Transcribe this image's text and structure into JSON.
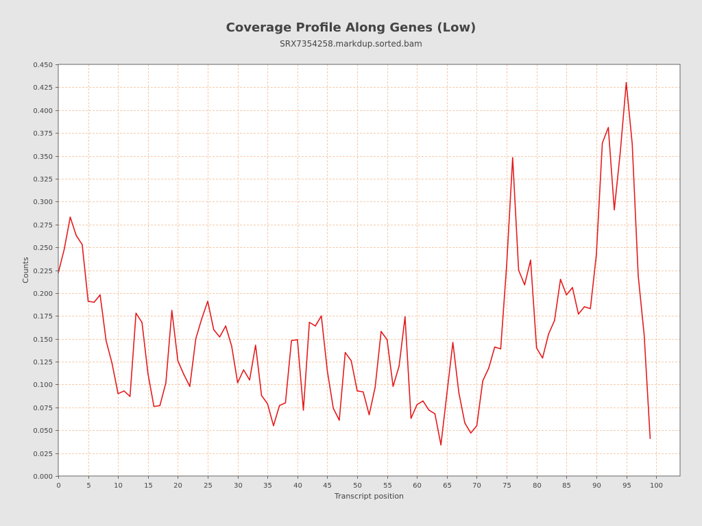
{
  "chart_data": {
    "type": "line",
    "title": "Coverage Profile Along Genes (Low)",
    "subtitle": "SRX7354258.markdup.sorted.bam",
    "xlabel": "Transcript position",
    "ylabel": "Counts",
    "xlim": [
      0,
      104
    ],
    "ylim": [
      0,
      0.45
    ],
    "x_ticks": [
      "0",
      "5",
      "10",
      "15",
      "20",
      "25",
      "30",
      "35",
      "40",
      "45",
      "50",
      "55",
      "60",
      "65",
      "70",
      "75",
      "80",
      "85",
      "90",
      "95",
      "100"
    ],
    "y_ticks": [
      "0.000",
      "0.025",
      "0.050",
      "0.075",
      "0.100",
      "0.125",
      "0.150",
      "0.175",
      "0.200",
      "0.225",
      "0.250",
      "0.275",
      "0.300",
      "0.325",
      "0.350",
      "0.375",
      "0.400",
      "0.425",
      "0.450"
    ],
    "grid": true,
    "series": [
      {
        "color": "#e31a1c",
        "x": [
          0,
          1,
          2,
          3,
          4,
          5,
          6,
          7,
          8,
          9,
          10,
          11,
          12,
          13,
          14,
          15,
          16,
          17,
          18,
          19,
          20,
          21,
          22,
          23,
          24,
          25,
          26,
          27,
          28,
          29,
          30,
          31,
          32,
          33,
          34,
          35,
          36,
          37,
          38,
          39,
          40,
          41,
          42,
          43,
          44,
          45,
          46,
          47,
          48,
          49,
          50,
          51,
          52,
          53,
          54,
          55,
          56,
          57,
          58,
          59,
          60,
          61,
          62,
          63,
          64,
          65,
          66,
          67,
          68,
          69,
          70,
          71,
          72,
          73,
          74,
          75,
          76,
          77,
          78,
          79,
          80,
          81,
          82,
          83,
          84,
          85,
          86,
          87,
          88,
          89,
          90,
          91,
          92,
          93,
          94,
          95,
          96,
          97,
          98,
          99
        ],
        "values": [
          0.222,
          0.248,
          0.283,
          0.263,
          0.253,
          0.191,
          0.19,
          0.198,
          0.148,
          0.123,
          0.09,
          0.093,
          0.087,
          0.178,
          0.168,
          0.112,
          0.076,
          0.077,
          0.102,
          0.181,
          0.126,
          0.111,
          0.098,
          0.15,
          0.172,
          0.191,
          0.16,
          0.152,
          0.164,
          0.142,
          0.102,
          0.116,
          0.105,
          0.143,
          0.088,
          0.079,
          0.055,
          0.077,
          0.08,
          0.148,
          0.149,
          0.072,
          0.168,
          0.164,
          0.175,
          0.115,
          0.074,
          0.061,
          0.135,
          0.126,
          0.093,
          0.092,
          0.067,
          0.097,
          0.158,
          0.149,
          0.098,
          0.12,
          0.174,
          0.063,
          0.078,
          0.082,
          0.072,
          0.068,
          0.034,
          0.09,
          0.146,
          0.091,
          0.058,
          0.047,
          0.055,
          0.104,
          0.118,
          0.141,
          0.139,
          0.231,
          0.348,
          0.225,
          0.209,
          0.236,
          0.14,
          0.129,
          0.155,
          0.17,
          0.215,
          0.198,
          0.206,
          0.177,
          0.185,
          0.183,
          0.242,
          0.364,
          0.381,
          0.291,
          0.354,
          0.43,
          0.363,
          0.219,
          0.154,
          0.041
        ]
      }
    ]
  },
  "colors": {
    "page_background": "#e6e6e6",
    "plot_background": "#ffffff",
    "gridline": "#f5c9aa",
    "axis": "#666666",
    "line": "#e31a1c"
  }
}
